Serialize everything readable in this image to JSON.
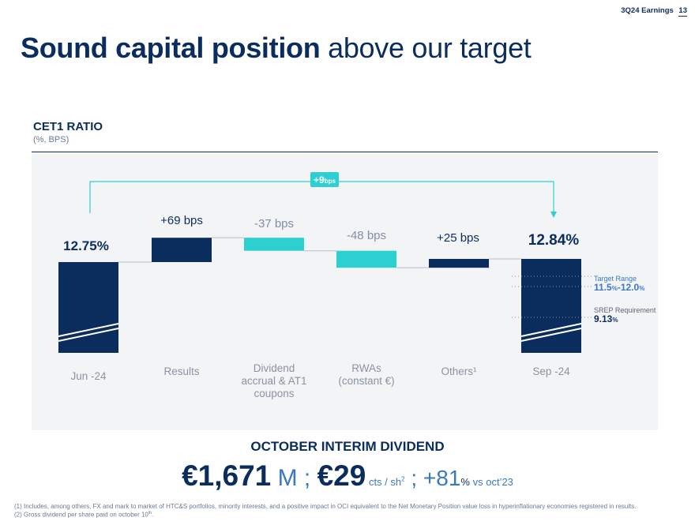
{
  "header": {
    "label": "3Q24 Earnings",
    "page": "13"
  },
  "title": {
    "bold": "Sound capital position",
    "rest": " above our target"
  },
  "section": {
    "title": "CET1 RATIO",
    "subtitle": "(%, BPS)"
  },
  "colors": {
    "navy": "#0a2d5e",
    "teal": "#2ecfd0",
    "blue": "#3a78c2"
  },
  "chart_data": {
    "type": "bar",
    "subtype": "waterfall",
    "categories": [
      "Jun -24",
      "Results",
      "Dividend accrual & AT1 coupons",
      "RWAs (constant €)",
      "Others¹",
      "Sep -24"
    ],
    "values_bps": [
      null,
      69,
      -37,
      -48,
      25,
      null
    ],
    "start_value_pct": 12.75,
    "end_value_pct": 12.84,
    "bars": [
      {
        "category": "Jun -24",
        "kind": "total",
        "value": 12.75,
        "label": "12.75%",
        "color": "navy"
      },
      {
        "category": "Results",
        "kind": "delta",
        "value": 69,
        "label": "+69 bps",
        "color": "navy"
      },
      {
        "category": "Dividend accrual & AT1 coupons",
        "kind": "delta",
        "value": -37,
        "label": "-37 bps",
        "color": "teal"
      },
      {
        "category": "RWAs (constant €)",
        "kind": "delta",
        "value": -48,
        "label": "-48 bps",
        "color": "teal"
      },
      {
        "category": "Others¹",
        "kind": "delta",
        "value": 25,
        "label": "+25 bps",
        "color": "navy"
      },
      {
        "category": "Sep -24",
        "kind": "total",
        "value": 12.84,
        "label": "12.84%",
        "color": "navy"
      }
    ],
    "category_labels": [
      [
        "Jun -24"
      ],
      [
        "Results"
      ],
      [
        "Dividend",
        "accrual & AT1",
        "coupons"
      ],
      [
        "RWAs",
        "(constant €)"
      ],
      [
        "Others¹"
      ],
      [
        "Sep -24"
      ]
    ],
    "change": {
      "value": 9,
      "label_main": "+9",
      "label_unit": "bps"
    },
    "reference_lines": [
      {
        "name": "Target Range",
        "value_text": "11.5",
        "unit1": "%",
        "sep": "-",
        "value_text2": "12.0",
        "unit2": "%",
        "low": 11.5,
        "high": 12.0
      },
      {
        "name": "SREP Requirement",
        "value_text": "9.13",
        "unit1": "%",
        "low": 9.13
      }
    ],
    "title": "",
    "xlabel": "",
    "ylabel": "",
    "grid": false,
    "legend": "none"
  },
  "dividend": {
    "title": "OCTOBER INTERIM DIVIDEND",
    "amount": "€1,671",
    "amount_unit": " M ; ",
    "per_share": "€29",
    "per_share_unit": " cts / sh",
    "per_share_note": "2",
    "sep": " ; ",
    "growth": "+81",
    "growth_unit": "%",
    "growth_ref": " vs oct’23"
  },
  "footnotes": [
    {
      "text": "(1) Includes, among others, FX and mark to market of HTC&S portfolios, minority interests, and a positive impact in OCI equivalent to the Net Monetary Position value loss in hyperinflationary economies registered in results."
    },
    {
      "text": "(2) Gross dividend per share paid on october 10",
      "sup": "th",
      "tail": "."
    }
  ]
}
